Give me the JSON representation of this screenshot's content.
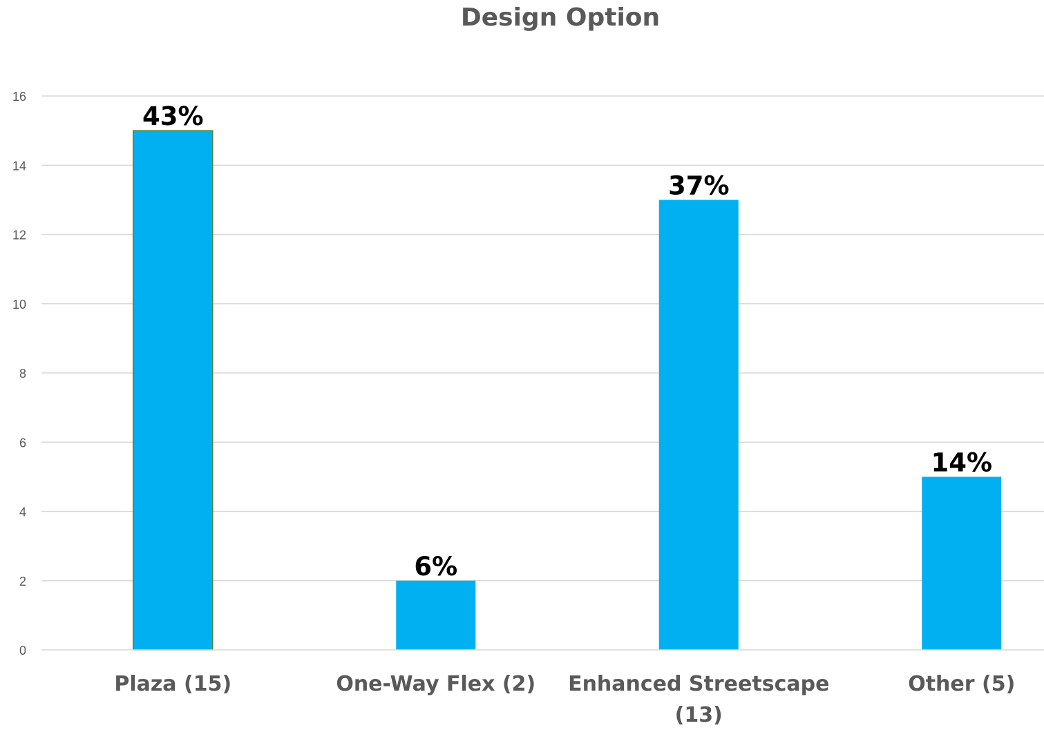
{
  "chart_data": {
    "type": "bar",
    "title": "Design Option",
    "categories": [
      [
        "Plaza (15)"
      ],
      [
        "One-Way Flex (2)"
      ],
      [
        "Enhanced Streetscape",
        "(13)"
      ],
      [
        "Other (5)"
      ]
    ],
    "values": [
      15,
      2,
      13,
      5
    ],
    "data_labels": [
      "43%",
      "6%",
      "37%",
      "14%"
    ],
    "xlabel": "",
    "ylabel": "",
    "ylim": [
      0,
      16
    ],
    "yticks": [
      0,
      2,
      4,
      6,
      8,
      10,
      12,
      14,
      16
    ],
    "grid": true,
    "bar_color": "#00B0F0",
    "first_bar_outline": "#548235"
  }
}
